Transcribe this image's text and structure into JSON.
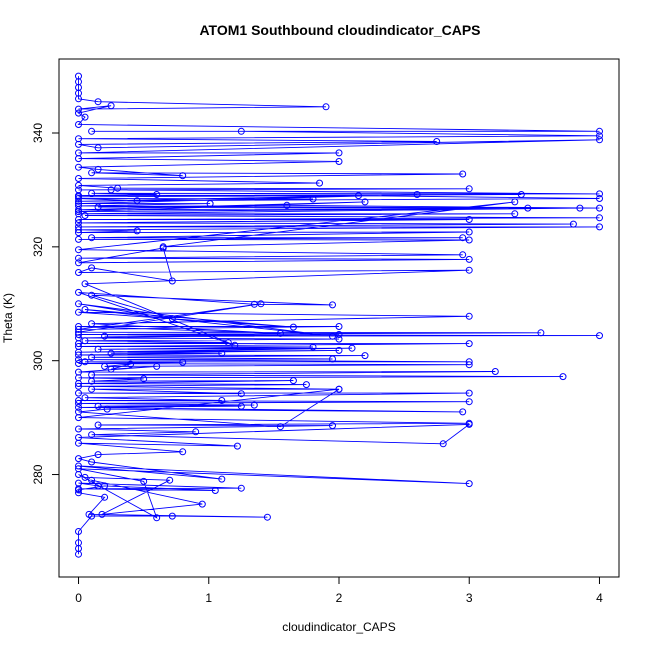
{
  "chart_data": {
    "type": "line",
    "title": "ATOM1 Southbound cloudindicator_CAPS",
    "xlabel": "cloudindicator_CAPS",
    "ylabel": "Theta (K)",
    "xlim": [
      -0.15,
      4.15
    ],
    "ylim": [
      262,
      353
    ],
    "x_ticks": [
      0,
      1,
      2,
      3,
      4
    ],
    "y_ticks": [
      280,
      300,
      320,
      340
    ],
    "grid": false,
    "series_color": "#0000ff",
    "series": [
      {
        "name": "cloudindicator_CAPS vs Theta",
        "points": [
          [
            0,
            350
          ],
          [
            0,
            349
          ],
          [
            0,
            348
          ],
          [
            0,
            347
          ],
          [
            0,
            346
          ],
          [
            0.15,
            345.5
          ],
          [
            1.9,
            344.6
          ],
          [
            0,
            344.2
          ],
          [
            0.25,
            344.8
          ],
          [
            0,
            343.5
          ],
          [
            0.05,
            342.8
          ],
          [
            0,
            341.5
          ],
          [
            4,
            340.3
          ],
          [
            0.1,
            340.3
          ],
          [
            1.25,
            340.3
          ],
          [
            4,
            339.5
          ],
          [
            0,
            339
          ],
          [
            2.75,
            338.5
          ],
          [
            0,
            338
          ],
          [
            0.15,
            337.4
          ],
          [
            4,
            338.8
          ],
          [
            0,
            336.5
          ],
          [
            2,
            336.5
          ],
          [
            0,
            335.5
          ],
          [
            2,
            335
          ],
          [
            0,
            334
          ],
          [
            0.15,
            333.6
          ],
          [
            0.8,
            332.5
          ],
          [
            0.1,
            333
          ],
          [
            2.95,
            332.8
          ],
          [
            0,
            332
          ],
          [
            1.85,
            331.2
          ],
          [
            0,
            330.8
          ],
          [
            0.3,
            330.3
          ],
          [
            3,
            330.2
          ],
          [
            0,
            330
          ],
          [
            0.25,
            330
          ],
          [
            4,
            329.3
          ],
          [
            0.1,
            329.4
          ],
          [
            0.6,
            329.2
          ],
          [
            0,
            329
          ],
          [
            3.4,
            329.2
          ],
          [
            0,
            328.8
          ],
          [
            2.15,
            329
          ],
          [
            4,
            328.5
          ],
          [
            0.45,
            328.1
          ],
          [
            0,
            328.5
          ],
          [
            1.8,
            328.4
          ],
          [
            0,
            328
          ],
          [
            2.6,
            329.2
          ],
          [
            0,
            327.6
          ],
          [
            1.01,
            327.6
          ],
          [
            0,
            327.2
          ],
          [
            3.45,
            326.8
          ],
          [
            0.15,
            327
          ],
          [
            1.6,
            327.3
          ],
          [
            4,
            326.8
          ],
          [
            0,
            326.5
          ],
          [
            2.2,
            327.9
          ],
          [
            0,
            326.2
          ],
          [
            3.85,
            326.8
          ],
          [
            0,
            325.8
          ],
          [
            3.35,
            325.8
          ],
          [
            0.05,
            325.5
          ],
          [
            4,
            325.1
          ],
          [
            0,
            324.8
          ],
          [
            3,
            324.8
          ],
          [
            0,
            324.2
          ],
          [
            3.8,
            324
          ],
          [
            0,
            323.5
          ],
          [
            4,
            323.5
          ],
          [
            0,
            323
          ],
          [
            0.45,
            322.8
          ],
          [
            0,
            322.5
          ],
          [
            3,
            322.6
          ],
          [
            0.1,
            321.6
          ],
          [
            2.95,
            321.6
          ],
          [
            0,
            321.3
          ],
          [
            3,
            321.2
          ],
          [
            0.65,
            320
          ],
          [
            3.35,
            327.9
          ],
          [
            0,
            319.5
          ],
          [
            2.95,
            318.6
          ],
          [
            0,
            318
          ],
          [
            3,
            317.8
          ],
          [
            0,
            317.2
          ],
          [
            0.65,
            319.8
          ],
          [
            0.72,
            314
          ],
          [
            0.1,
            316.3
          ],
          [
            0,
            315.5
          ],
          [
            3,
            315.9
          ],
          [
            0.05,
            313.5
          ],
          [
            1.2,
            302.7
          ],
          [
            0,
            312
          ],
          [
            1.35,
            309.9
          ],
          [
            1.95,
            309.8
          ],
          [
            0.1,
            311.5
          ],
          [
            0.72,
            307.4
          ],
          [
            0,
            310
          ],
          [
            1.95,
            304.3
          ],
          [
            0.05,
            309
          ],
          [
            1.65,
            305.9
          ],
          [
            0,
            308.5
          ],
          [
            3,
            307.8
          ],
          [
            0.1,
            306.5
          ],
          [
            1.55,
            304.8
          ],
          [
            0,
            306
          ],
          [
            2,
            306
          ],
          [
            0,
            305.5
          ],
          [
            1.4,
            310
          ],
          [
            0,
            305
          ],
          [
            3.55,
            304.9
          ],
          [
            0,
            304.6
          ],
          [
            4,
            304.4
          ],
          [
            0.2,
            304.3
          ],
          [
            2,
            304.6
          ],
          [
            0,
            304
          ],
          [
            2,
            303.8
          ],
          [
            0.05,
            303.5
          ],
          [
            1.15,
            303.2
          ],
          [
            0,
            303
          ],
          [
            3,
            303
          ],
          [
            0,
            302.5
          ],
          [
            1.8,
            302.4
          ],
          [
            0.15,
            302
          ],
          [
            2.1,
            302.2
          ],
          [
            0,
            301.5
          ],
          [
            2,
            301.8
          ],
          [
            0.25,
            301.3
          ],
          [
            1.1,
            301.3
          ],
          [
            0,
            301
          ],
          [
            2.2,
            300.9
          ],
          [
            0.1,
            300.6
          ],
          [
            1.95,
            300.3
          ],
          [
            0,
            300.2
          ],
          [
            3,
            299.8
          ],
          [
            0.05,
            299.8
          ],
          [
            0.8,
            299.7
          ],
          [
            0,
            299.5
          ],
          [
            3,
            299.3
          ],
          [
            0.2,
            299
          ],
          [
            0.4,
            299.4
          ],
          [
            0.25,
            298.5
          ],
          [
            0.6,
            299
          ],
          [
            0,
            298
          ],
          [
            3.2,
            298.1
          ],
          [
            0.1,
            297.5
          ],
          [
            3.72,
            297.2
          ],
          [
            0,
            297
          ],
          [
            0.5,
            296.8
          ],
          [
            0.1,
            296.4
          ],
          [
            1.65,
            296.5
          ],
          [
            0,
            296
          ],
          [
            1.75,
            295.8
          ],
          [
            0,
            295.5
          ],
          [
            2,
            295
          ],
          [
            0.1,
            295
          ],
          [
            1.25,
            294.2
          ],
          [
            0,
            294.3
          ],
          [
            3,
            294.3
          ],
          [
            0.05,
            293.5
          ],
          [
            1.1,
            293
          ],
          [
            0,
            293
          ],
          [
            3,
            292.8
          ],
          [
            0,
            292.5
          ],
          [
            1.35,
            292.2
          ],
          [
            0.15,
            292
          ],
          [
            1.25,
            292
          ],
          [
            0,
            291.8
          ],
          [
            2.95,
            291
          ],
          [
            0.22,
            291.5
          ],
          [
            0,
            291
          ],
          [
            1.55,
            288.4
          ],
          [
            2,
            295
          ],
          [
            0,
            290
          ],
          [
            3,
            289
          ],
          [
            0.15,
            288.7
          ],
          [
            1.95,
            288.6
          ],
          [
            0,
            288
          ],
          [
            0.9,
            287.5
          ],
          [
            0.1,
            287
          ],
          [
            2.8,
            285.4
          ],
          [
            3,
            288.8
          ],
          [
            0,
            286.5
          ],
          [
            1.22,
            285
          ],
          [
            0,
            285.5
          ],
          [
            0.8,
            284
          ],
          [
            0.15,
            283.5
          ],
          [
            0,
            282.8
          ],
          [
            0.1,
            282.2
          ],
          [
            1.1,
            279.2
          ],
          [
            0,
            281.5
          ],
          [
            3,
            278.4
          ],
          [
            0,
            281
          ],
          [
            0.5,
            278.8
          ],
          [
            0.6,
            272.4
          ],
          [
            0,
            280
          ],
          [
            0.05,
            279.5
          ],
          [
            0.7,
            279
          ],
          [
            0.18,
            273
          ],
          [
            0.95,
            274.8
          ],
          [
            0.1,
            279
          ],
          [
            0.15,
            278
          ],
          [
            0,
            278.5
          ],
          [
            1.25,
            277.6
          ],
          [
            0,
            277.5
          ],
          [
            1.05,
            277.2
          ],
          [
            0.2,
            278
          ],
          [
            0,
            277.3
          ],
          [
            0,
            276.8
          ],
          [
            0.2,
            276
          ],
          [
            0.08,
            273
          ],
          [
            1.45,
            272.5
          ],
          [
            0.72,
            272.7
          ],
          [
            0.1,
            272.7
          ],
          [
            0,
            270
          ],
          [
            0,
            268
          ],
          [
            0,
            267
          ],
          [
            0,
            266
          ]
        ]
      }
    ]
  }
}
